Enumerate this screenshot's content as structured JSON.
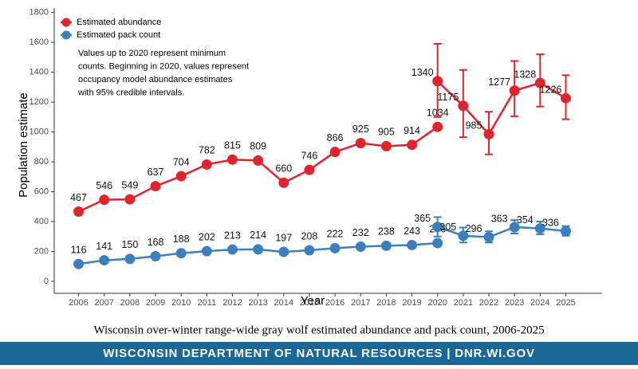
{
  "chart_data": {
    "type": "line",
    "xlabel": "Year",
    "ylabel": "Population estimate",
    "xlim": [
      2005.05,
      2025.95
    ],
    "xticks": [
      2006,
      2007,
      2008,
      2009,
      2010,
      2011,
      2012,
      2013,
      2014,
      2015,
      2016,
      2017,
      2018,
      2019,
      2020,
      2021,
      2022,
      2023,
      2024,
      2025
    ],
    "ylim": [
      -80,
      1830
    ],
    "yticks": [
      0,
      200,
      400,
      600,
      800,
      1000,
      1200,
      1400,
      1600,
      1800
    ],
    "legend": "top-left",
    "annotation": [
      "Values up to 2020 represent minimum",
      "counts. Beginning in 2020, values represent",
      "occupancy model abundance estimates",
      "with 95% credible intervals."
    ],
    "series": [
      {
        "name": "Estimated abundance",
        "color": "#e0242b",
        "segments": [
          {
            "x": [
              2006,
              2007,
              2008,
              2009,
              2010,
              2011,
              2012,
              2013,
              2014,
              2015,
              2016,
              2017,
              2018,
              2019,
              2020
            ],
            "values": [
              467,
              546,
              549,
              637,
              704,
              782,
              815,
              809,
              660,
              746,
              866,
              925,
              905,
              914,
              1034
            ]
          },
          {
            "x": [
              2020,
              2021,
              2022,
              2023,
              2024,
              2025
            ],
            "values": [
              1340,
              1175,
              985,
              1277,
              1328,
              1226
            ],
            "ci_low": [
              1100,
              965,
              850,
              1105,
              1170,
              1085
            ],
            "ci_high": [
              1590,
              1415,
              1135,
              1475,
              1520,
              1380
            ]
          }
        ]
      },
      {
        "name": "Estimated pack count",
        "color": "#3b7fbd",
        "segments": [
          {
            "x": [
              2006,
              2007,
              2008,
              2009,
              2010,
              2011,
              2012,
              2013,
              2014,
              2015,
              2016,
              2017,
              2018,
              2019,
              2020
            ],
            "values": [
              116,
              141,
              150,
              168,
              188,
              202,
              213,
              214,
              197,
              208,
              222,
              232,
              238,
              243,
              256
            ]
          },
          {
            "x": [
              2020,
              2021,
              2022,
              2023,
              2024,
              2025
            ],
            "values": [
              365,
              305,
              296,
              363,
              354,
              336
            ],
            "ci_low": [
              300,
              260,
              260,
              320,
              315,
              305
            ],
            "ci_high": [
              430,
              360,
              335,
              410,
              400,
              370
            ]
          }
        ]
      }
    ]
  },
  "caption": "Wisconsin over-winter range-wide gray wolf estimated abundance and pack count, 2006-2025",
  "banner": "WISCONSIN DEPARTMENT OF NATURAL RESOURCES | DNR.WI.GOV"
}
